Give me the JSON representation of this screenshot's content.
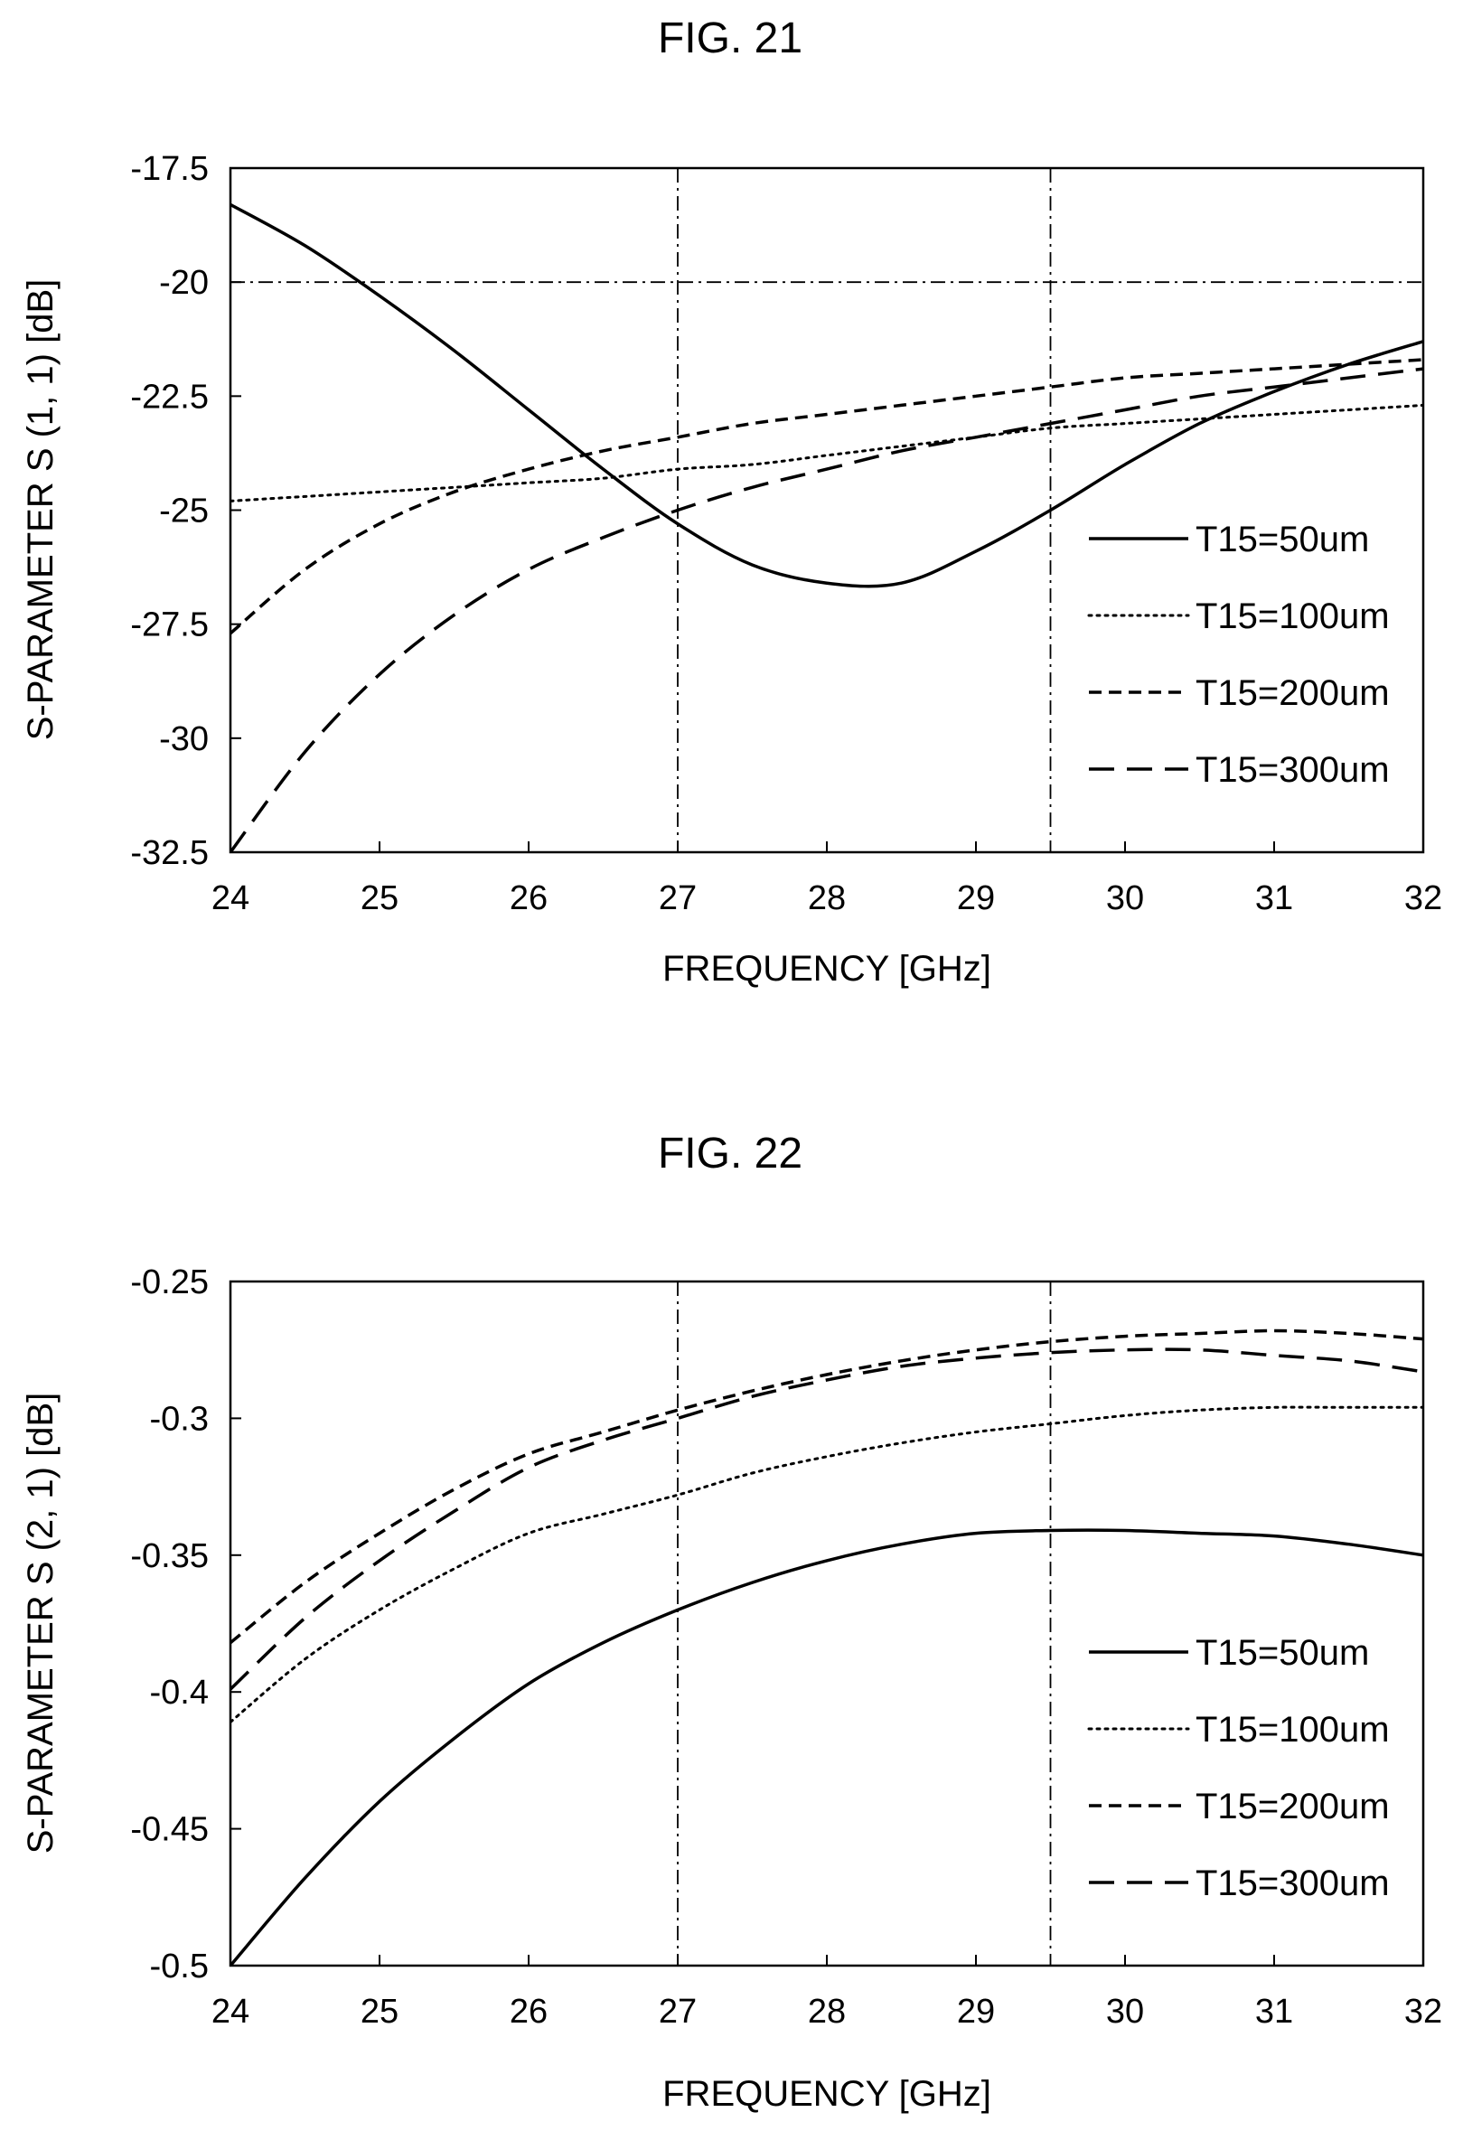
{
  "figures": [
    {
      "title": "FIG. 21"
    },
    {
      "title": "FIG. 22"
    }
  ],
  "chart_data": [
    {
      "type": "line",
      "title": "FIG. 21",
      "xlabel": "FREQUENCY [GHz]",
      "ylabel": "S-PARAMETER S (1, 1) [dB]",
      "xlim": [
        24,
        32
      ],
      "ylim": [
        -32.5,
        -17.5
      ],
      "xticks": [
        "24",
        "25",
        "26",
        "27",
        "28",
        "29",
        "30",
        "31",
        "32"
      ],
      "yticks": [
        "-17.5",
        "-20",
        "-22.5",
        "-25",
        "-27.5",
        "-30",
        "-32.5"
      ],
      "grid": false,
      "legend_position": "right",
      "reference_lines": {
        "vertical": [
          27,
          29.5
        ],
        "horizontal": [
          -20
        ]
      },
      "x": [
        24,
        24.5,
        25,
        25.5,
        26,
        26.5,
        27,
        27.5,
        28,
        28.5,
        29,
        29.5,
        30,
        30.5,
        31,
        31.5,
        32
      ],
      "series": [
        {
          "name": "T15=50um",
          "style": "solid",
          "values": [
            -18.3,
            -19.2,
            -20.3,
            -21.5,
            -22.8,
            -24.1,
            -25.3,
            -26.2,
            -26.6,
            -26.6,
            -25.9,
            -25.0,
            -24.0,
            -23.1,
            -22.4,
            -21.8,
            -21.3
          ]
        },
        {
          "name": "T15=100um",
          "style": "dotted",
          "values": [
            -24.8,
            -24.7,
            -24.6,
            -24.5,
            -24.4,
            -24.3,
            -24.1,
            -24.0,
            -23.8,
            -23.6,
            -23.4,
            -23.2,
            -23.1,
            -23.0,
            -22.9,
            -22.8,
            -22.7
          ]
        },
        {
          "name": "T15=200um",
          "style": "short-dash",
          "values": [
            -27.7,
            -26.3,
            -25.3,
            -24.6,
            -24.1,
            -23.7,
            -23.4,
            -23.1,
            -22.9,
            -22.7,
            -22.5,
            -22.3,
            -22.1,
            -22.0,
            -21.9,
            -21.8,
            -21.7
          ]
        },
        {
          "name": "T15=300um",
          "style": "long-dash",
          "values": [
            -32.5,
            -30.3,
            -28.6,
            -27.3,
            -26.3,
            -25.6,
            -25.0,
            -24.5,
            -24.1,
            -23.7,
            -23.4,
            -23.1,
            -22.8,
            -22.5,
            -22.3,
            -22.1,
            -21.9
          ]
        }
      ]
    },
    {
      "type": "line",
      "title": "FIG. 22",
      "xlabel": "FREQUENCY [GHz]",
      "ylabel": "S-PARAMETER S (2, 1) [dB]",
      "xlim": [
        24,
        32
      ],
      "ylim": [
        -0.5,
        -0.25
      ],
      "xticks": [
        "24",
        "25",
        "26",
        "27",
        "28",
        "29",
        "30",
        "31",
        "32"
      ],
      "yticks": [
        "-0.25",
        "-0.3",
        "-0.35",
        "-0.4",
        "-0.45",
        "-0.5"
      ],
      "grid": false,
      "legend_position": "right",
      "reference_lines": {
        "vertical": [
          27,
          29.5
        ],
        "horizontal": []
      },
      "x": [
        24,
        24.5,
        25,
        25.5,
        26,
        26.5,
        27,
        27.5,
        28,
        28.5,
        29,
        29.5,
        30,
        30.5,
        31,
        31.5,
        32
      ],
      "series": [
        {
          "name": "T15=50um",
          "style": "solid",
          "values": [
            -0.5,
            -0.468,
            -0.44,
            -0.417,
            -0.397,
            -0.382,
            -0.37,
            -0.36,
            -0.352,
            -0.346,
            -0.342,
            -0.341,
            -0.341,
            -0.342,
            -0.343,
            -0.346,
            -0.35
          ]
        },
        {
          "name": "T15=100um",
          "style": "dotted",
          "values": [
            -0.411,
            -0.388,
            -0.37,
            -0.355,
            -0.342,
            -0.335,
            -0.328,
            -0.32,
            -0.314,
            -0.309,
            -0.305,
            -0.302,
            -0.299,
            -0.297,
            -0.296,
            -0.296,
            -0.296
          ]
        },
        {
          "name": "T15=200um",
          "style": "short-dash",
          "values": [
            -0.382,
            -0.36,
            -0.342,
            -0.326,
            -0.313,
            -0.305,
            -0.297,
            -0.29,
            -0.284,
            -0.279,
            -0.275,
            -0.272,
            -0.27,
            -0.269,
            -0.268,
            -0.269,
            -0.271
          ]
        },
        {
          "name": "T15=300um",
          "style": "long-dash",
          "values": [
            -0.399,
            -0.373,
            -0.352,
            -0.334,
            -0.318,
            -0.308,
            -0.3,
            -0.292,
            -0.286,
            -0.281,
            -0.278,
            -0.276,
            -0.275,
            -0.275,
            -0.277,
            -0.279,
            -0.283
          ]
        }
      ]
    }
  ]
}
